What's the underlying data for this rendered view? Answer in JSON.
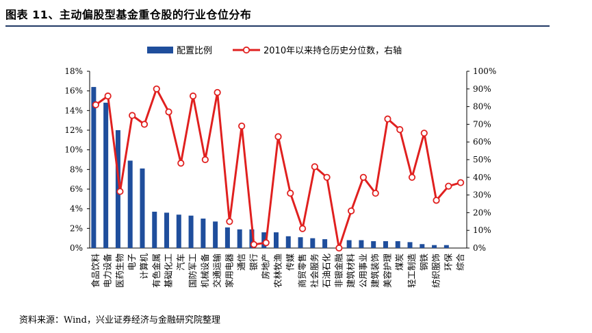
{
  "title": "图表 11、主动偏股型基金重仓股的行业仓位分布",
  "source": "资料来源：Wind，兴业证券经济与金融研究院整理",
  "chart_data": {
    "type": "bar+line",
    "categories": [
      "食品饮料",
      "电力设备",
      "医药生物",
      "电子",
      "计算机",
      "有色金属",
      "基础化工",
      "汽车",
      "国防军工",
      "机械设备",
      "交通运输",
      "家用电器",
      "通信",
      "银行",
      "房地产",
      "农林牧渔",
      "传媒",
      "商贸零售",
      "社会服务",
      "石油石化",
      "非银金融",
      "建筑材料",
      "公用事业",
      "建筑装饰",
      "美容护理",
      "煤炭",
      "轻工制造",
      "钢铁",
      "纺织服饰",
      "环保",
      "综合"
    ],
    "series": [
      {
        "name": "配置比例",
        "axis": "left",
        "color": "#1f4e9c",
        "values": [
          16.4,
          14.8,
          12.0,
          8.9,
          8.1,
          3.7,
          3.6,
          3.4,
          3.3,
          3.0,
          2.7,
          2.1,
          1.9,
          1.9,
          1.6,
          1.6,
          1.2,
          1.1,
          1.0,
          0.9,
          0.0,
          0.8,
          0.8,
          0.7,
          0.7,
          0.7,
          0.6,
          0.4,
          0.3,
          0.3,
          0.0
        ]
      },
      {
        "name": "2010年以来持仓历史分位数，右轴",
        "axis": "right",
        "color": "#e0201f",
        "values": [
          81,
          86,
          32,
          75,
          70,
          90,
          77,
          48,
          86,
          50,
          88,
          15,
          69,
          2,
          3,
          63,
          31,
          11,
          46,
          40,
          0,
          21,
          40,
          31,
          73,
          67,
          40,
          65,
          27,
          35,
          37
        ]
      }
    ],
    "y_left": {
      "min": 0,
      "max": 18,
      "step": 2,
      "tick_labels": [
        "0%",
        "2%",
        "4%",
        "6%",
        "8%",
        "10%",
        "12%",
        "14%",
        "16%",
        "18%"
      ]
    },
    "y_right": {
      "min": 0,
      "max": 100,
      "step": 10,
      "tick_labels": [
        "0%",
        "10%",
        "20%",
        "30%",
        "40%",
        "50%",
        "60%",
        "70%",
        "80%",
        "90%",
        "100%"
      ]
    },
    "legend_position": "top",
    "grid": false
  }
}
